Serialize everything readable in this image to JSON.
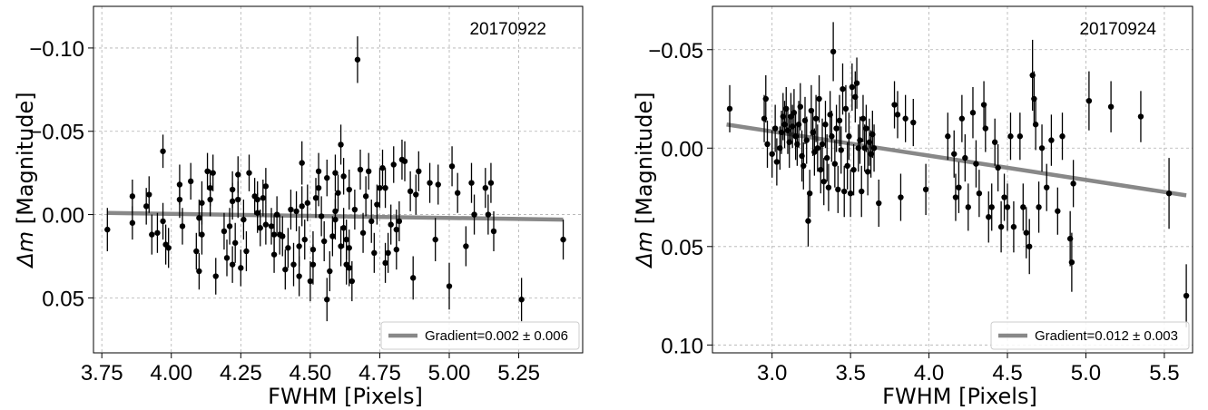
{
  "chart_data": [
    {
      "type": "scatter",
      "annotation": "20170922",
      "xlabel": "FWHM [Pixels]",
      "ylabel_symbol": "Δm",
      "ylabel_text": "[Magnitude]",
      "xlim": [
        3.72,
        5.48
      ],
      "ylim": [
        0.083,
        -0.125
      ],
      "y_inverted": true,
      "grid": true,
      "xticks": [
        3.75,
        4.0,
        4.25,
        4.5,
        4.75,
        5.0,
        5.25
      ],
      "xtick_labels": [
        "3.75",
        "4.00",
        "4.25",
        "4.50",
        "4.75",
        "5.00",
        "5.25"
      ],
      "yticks": [
        -0.1,
        -0.05,
        0.0,
        0.05
      ],
      "ytick_labels": [
        "−0.10",
        "−0.05",
        "0.00",
        "0.05"
      ],
      "fit": {
        "x": [
          3.77,
          5.41
        ],
        "y": [
          -0.001,
          0.003
        ],
        "color": "#888888"
      },
      "legend": {
        "label": "Gradient=0.002 ± 0.006",
        "position": "lower right"
      },
      "points": [
        [
          3.77,
          0.009,
          0.013
        ],
        [
          3.86,
          -0.011,
          0.01
        ],
        [
          3.86,
          0.005,
          0.01
        ],
        [
          3.91,
          -0.005,
          0.011
        ],
        [
          3.92,
          -0.012,
          0.011
        ],
        [
          3.93,
          0.012,
          0.012
        ],
        [
          3.95,
          0.011,
          0.012
        ],
        [
          3.97,
          -0.038,
          0.01
        ],
        [
          3.97,
          0.004,
          0.011
        ],
        [
          3.98,
          0.018,
          0.012
        ],
        [
          3.99,
          0.02,
          0.012
        ],
        [
          4.03,
          -0.009,
          0.011
        ],
        [
          4.04,
          0.007,
          0.011
        ],
        [
          4.03,
          -0.018,
          0.012
        ],
        [
          4.07,
          -0.02,
          0.011
        ],
        [
          4.09,
          0.022,
          0.011
        ],
        [
          4.1,
          0.034,
          0.011
        ],
        [
          4.1,
          0.002,
          0.011
        ],
        [
          4.11,
          0.012,
          0.012
        ],
        [
          4.11,
          -0.007,
          0.013
        ],
        [
          4.13,
          -0.026,
          0.011
        ],
        [
          4.14,
          -0.016,
          0.011
        ],
        [
          4.14,
          -0.009,
          0.01
        ],
        [
          4.15,
          -0.025,
          0.011
        ],
        [
          4.16,
          0.037,
          0.011
        ],
        [
          4.19,
          0.01,
          0.011
        ],
        [
          4.2,
          0.026,
          0.011
        ],
        [
          4.21,
          0.007,
          0.011
        ],
        [
          4.22,
          -0.015,
          0.011
        ],
        [
          4.22,
          -0.008,
          0.011
        ],
        [
          4.22,
          0.03,
          0.011
        ],
        [
          4.23,
          0.017,
          0.012
        ],
        [
          4.24,
          -0.024,
          0.011
        ],
        [
          4.24,
          -0.009,
          0.011
        ],
        [
          4.25,
          0.032,
          0.011
        ],
        [
          4.26,
          0.003,
          0.012
        ],
        [
          4.27,
          0.022,
          0.012
        ],
        [
          4.28,
          -0.025,
          0.011
        ],
        [
          4.3,
          -0.011,
          0.011
        ],
        [
          4.31,
          -0.009,
          0.011
        ],
        [
          4.31,
          -0.001,
          0.012
        ],
        [
          4.32,
          0.008,
          0.011
        ],
        [
          4.33,
          -0.01,
          0.011
        ],
        [
          4.34,
          -0.017,
          0.011
        ],
        [
          4.34,
          0.006,
          0.012
        ],
        [
          4.36,
          0.007,
          0.011
        ],
        [
          4.37,
          0.012,
          0.012
        ],
        [
          4.37,
          0.024,
          0.011
        ],
        [
          4.38,
          0.0,
          0.011
        ],
        [
          4.39,
          0.012,
          0.012
        ],
        [
          4.4,
          0.013,
          0.012
        ],
        [
          4.41,
          0.033,
          0.012
        ],
        [
          4.42,
          0.02,
          0.012
        ],
        [
          4.43,
          -0.003,
          0.012
        ],
        [
          4.44,
          0.03,
          0.013
        ],
        [
          4.45,
          -0.002,
          0.012
        ],
        [
          4.46,
          0.019,
          0.012
        ],
        [
          4.46,
          0.037,
          0.012
        ],
        [
          4.47,
          -0.005,
          0.012
        ],
        [
          4.48,
          0.015,
          0.012
        ],
        [
          4.49,
          -0.007,
          0.011
        ],
        [
          4.5,
          0.04,
          0.012
        ],
        [
          4.51,
          0.021,
          0.011
        ],
        [
          4.51,
          0.03,
          0.012
        ],
        [
          4.52,
          -0.01,
          0.012
        ],
        [
          4.53,
          -0.016,
          0.011
        ],
        [
          4.53,
          -0.026,
          0.011
        ],
        [
          4.54,
          0.001,
          0.012
        ],
        [
          4.55,
          0.016,
          0.012
        ],
        [
          4.56,
          -0.022,
          0.011
        ],
        [
          4.56,
          0.051,
          0.013
        ],
        [
          4.57,
          0.034,
          0.012
        ],
        [
          4.59,
          0.003,
          0.012
        ],
        [
          4.59,
          -0.002,
          0.011
        ],
        [
          4.6,
          -0.013,
          0.011
        ],
        [
          4.61,
          0.019,
          0.012
        ],
        [
          4.61,
          -0.042,
          0.012
        ],
        [
          4.62,
          -0.023,
          0.011
        ],
        [
          4.62,
          0.008,
          0.012
        ],
        [
          4.63,
          0.03,
          0.012
        ],
        [
          4.63,
          0.015,
          0.012
        ],
        [
          4.64,
          0.032,
          0.011
        ],
        [
          4.64,
          0.02,
          0.011
        ],
        [
          4.64,
          -0.015,
          0.012
        ],
        [
          4.65,
          0.04,
          0.012
        ],
        [
          4.66,
          -0.003,
          0.012
        ],
        [
          4.67,
          -0.093,
          0.014
        ],
        [
          4.68,
          -0.027,
          0.012
        ],
        [
          4.69,
          0.011,
          0.012
        ],
        [
          4.7,
          -0.011,
          0.012
        ],
        [
          4.71,
          -0.026,
          0.011
        ],
        [
          4.72,
          0.004,
          0.013
        ],
        [
          4.73,
          0.023,
          0.012
        ],
        [
          4.74,
          -0.006,
          0.012
        ],
        [
          4.75,
          -0.016,
          0.012
        ],
        [
          4.76,
          -0.028,
          0.011
        ],
        [
          4.77,
          0.029,
          0.012
        ],
        [
          4.77,
          -0.016,
          0.012
        ],
        [
          4.78,
          0.023,
          0.012
        ],
        [
          4.79,
          0.006,
          0.012
        ],
        [
          4.8,
          -0.03,
          0.011
        ],
        [
          4.81,
          0.009,
          0.012
        ],
        [
          4.81,
          0.021,
          0.012
        ],
        [
          4.82,
          0.004,
          0.012
        ],
        [
          4.83,
          -0.033,
          0.012
        ],
        [
          4.84,
          -0.032,
          0.012
        ],
        [
          4.86,
          -0.014,
          0.012
        ],
        [
          4.87,
          0.038,
          0.013
        ],
        [
          4.88,
          -0.012,
          0.012
        ],
        [
          4.89,
          -0.026,
          0.012
        ],
        [
          4.93,
          -0.019,
          0.012
        ],
        [
          4.95,
          0.015,
          0.013
        ],
        [
          4.96,
          -0.018,
          0.012
        ],
        [
          5.0,
          0.043,
          0.014
        ],
        [
          5.01,
          -0.029,
          0.012
        ],
        [
          5.03,
          -0.013,
          0.012
        ],
        [
          5.06,
          0.019,
          0.012
        ],
        [
          5.08,
          -0.019,
          0.012
        ],
        [
          5.09,
          0.0,
          0.012
        ],
        [
          5.13,
          -0.016,
          0.012
        ],
        [
          5.14,
          0.0,
          0.012
        ],
        [
          5.15,
          -0.019,
          0.012
        ],
        [
          5.16,
          0.01,
          0.012
        ],
        [
          5.26,
          0.051,
          0.013
        ],
        [
          5.41,
          0.015,
          0.012
        ],
        [
          4.58,
          0.013,
          0.012
        ],
        [
          4.47,
          -0.031,
          0.013
        ],
        [
          4.59,
          -0.025,
          0.011
        ]
      ]
    },
    {
      "type": "scatter",
      "annotation": "20170924",
      "xlabel": "FWHM [Pixels]",
      "ylabel_symbol": "Δm",
      "ylabel_text": "[Magnitude]",
      "xlim": [
        2.62,
        5.68
      ],
      "ylim": [
        0.104,
        -0.072
      ],
      "y_inverted": true,
      "grid": true,
      "xticks": [
        3.0,
        3.5,
        4.0,
        4.5,
        5.0,
        5.5
      ],
      "xtick_labels": [
        "3.0",
        "3.5",
        "4.0",
        "4.5",
        "5.0",
        "5.5"
      ],
      "yticks": [
        -0.05,
        0.0,
        0.05,
        0.1
      ],
      "ytick_labels": [
        "−0.05",
        "0.00",
        "0.05",
        "0.10"
      ],
      "fit": {
        "x": [
          2.71,
          5.64
        ],
        "y": [
          -0.012,
          0.024
        ],
        "color": "#888888"
      },
      "legend": {
        "label": "Gradient=0.012 ± 0.003",
        "position": "lower right"
      },
      "points": [
        [
          2.73,
          -0.02,
          0.012
        ],
        [
          2.95,
          -0.015,
          0.012
        ],
        [
          2.96,
          -0.025,
          0.012
        ],
        [
          2.97,
          -0.002,
          0.012
        ],
        [
          3.0,
          0.003,
          0.012
        ],
        [
          3.02,
          -0.01,
          0.012
        ],
        [
          3.03,
          0.007,
          0.012
        ],
        [
          3.05,
          0.0,
          0.011
        ],
        [
          3.06,
          -0.008,
          0.011
        ],
        [
          3.07,
          -0.016,
          0.012
        ],
        [
          3.08,
          -0.012,
          0.012
        ],
        [
          3.09,
          -0.02,
          0.011
        ],
        [
          3.1,
          -0.009,
          0.012
        ],
        [
          3.11,
          -0.003,
          0.013
        ],
        [
          3.12,
          -0.016,
          0.012
        ],
        [
          3.13,
          -0.011,
          0.011
        ],
        [
          3.14,
          -0.018,
          0.012
        ],
        [
          3.15,
          -0.006,
          0.012
        ],
        [
          3.16,
          -0.002,
          0.011
        ],
        [
          3.17,
          -0.012,
          0.012
        ],
        [
          3.18,
          -0.021,
          0.012
        ],
        [
          3.19,
          0.004,
          0.013
        ],
        [
          3.2,
          0.009,
          0.012
        ],
        [
          3.21,
          -0.014,
          0.012
        ],
        [
          3.22,
          -0.004,
          0.012
        ],
        [
          3.23,
          0.037,
          0.013
        ],
        [
          3.24,
          0.023,
          0.012
        ],
        [
          3.25,
          -0.019,
          0.013
        ],
        [
          3.26,
          -0.008,
          0.012
        ],
        [
          3.27,
          0.002,
          0.012
        ],
        [
          3.28,
          -0.015,
          0.012
        ],
        [
          3.29,
          0.0,
          0.012
        ],
        [
          3.3,
          -0.025,
          0.012
        ],
        [
          3.31,
          0.011,
          0.012
        ],
        [
          3.32,
          -0.002,
          0.013
        ],
        [
          3.33,
          0.017,
          0.012
        ],
        [
          3.34,
          -0.012,
          0.012
        ],
        [
          3.35,
          0.005,
          0.012
        ],
        [
          3.36,
          0.02,
          0.012
        ],
        [
          3.37,
          -0.017,
          0.012
        ],
        [
          3.38,
          -0.006,
          0.013
        ],
        [
          3.39,
          -0.049,
          0.015
        ],
        [
          3.4,
          0.008,
          0.012
        ],
        [
          3.41,
          -0.01,
          0.012
        ],
        [
          3.42,
          0.021,
          0.012
        ],
        [
          3.43,
          -0.014,
          0.013
        ],
        [
          3.44,
          0.001,
          0.012
        ],
        [
          3.45,
          -0.03,
          0.013
        ],
        [
          3.46,
          0.022,
          0.013
        ],
        [
          3.47,
          -0.02,
          0.012
        ],
        [
          3.48,
          0.009,
          0.012
        ],
        [
          3.49,
          -0.006,
          0.012
        ],
        [
          3.5,
          0.023,
          0.012
        ],
        [
          3.51,
          -0.031,
          0.012
        ],
        [
          3.52,
          0.011,
          0.013
        ],
        [
          3.53,
          -0.026,
          0.013
        ],
        [
          3.54,
          -0.033,
          0.013
        ],
        [
          3.55,
          0.0,
          0.012
        ],
        [
          3.56,
          -0.004,
          0.012
        ],
        [
          3.57,
          0.022,
          0.013
        ],
        [
          3.58,
          -0.015,
          0.012
        ],
        [
          3.59,
          0.0,
          0.012
        ],
        [
          3.6,
          -0.01,
          0.012
        ],
        [
          3.61,
          0.012,
          0.012
        ],
        [
          3.62,
          -0.003,
          0.012
        ],
        [
          3.63,
          0.003,
          0.012
        ],
        [
          3.64,
          -0.007,
          0.012
        ],
        [
          3.65,
          0.0,
          0.012
        ],
        [
          3.68,
          0.028,
          0.012
        ],
        [
          3.78,
          -0.022,
          0.012
        ],
        [
          3.8,
          -0.017,
          0.012
        ],
        [
          3.82,
          0.025,
          0.012
        ],
        [
          3.85,
          -0.015,
          0.012
        ],
        [
          3.9,
          -0.013,
          0.012
        ],
        [
          3.98,
          0.021,
          0.013
        ],
        [
          4.12,
          -0.006,
          0.012
        ],
        [
          4.16,
          0.003,
          0.012
        ],
        [
          4.17,
          0.025,
          0.012
        ],
        [
          4.19,
          0.02,
          0.013
        ],
        [
          4.21,
          -0.015,
          0.012
        ],
        [
          4.23,
          0.005,
          0.012
        ],
        [
          4.25,
          0.03,
          0.012
        ],
        [
          4.28,
          -0.018,
          0.013
        ],
        [
          4.3,
          0.008,
          0.012
        ],
        [
          4.32,
          0.023,
          0.012
        ],
        [
          4.35,
          -0.022,
          0.012
        ],
        [
          4.36,
          -0.01,
          0.012
        ],
        [
          4.38,
          0.035,
          0.013
        ],
        [
          4.4,
          0.03,
          0.012
        ],
        [
          4.42,
          -0.003,
          0.012
        ],
        [
          4.44,
          0.01,
          0.012
        ],
        [
          4.46,
          0.04,
          0.013
        ],
        [
          4.48,
          0.025,
          0.012
        ],
        [
          4.5,
          0.03,
          0.012
        ],
        [
          4.52,
          -0.006,
          0.012
        ],
        [
          4.54,
          0.04,
          0.013
        ],
        [
          4.58,
          -0.006,
          0.012
        ],
        [
          4.6,
          0.03,
          0.012
        ],
        [
          4.62,
          0.043,
          0.013
        ],
        [
          4.64,
          0.05,
          0.014
        ],
        [
          4.66,
          -0.037,
          0.018
        ],
        [
          4.67,
          -0.025,
          0.014
        ],
        [
          4.68,
          -0.012,
          0.013
        ],
        [
          4.7,
          0.03,
          0.013
        ],
        [
          4.72,
          0.0,
          0.012
        ],
        [
          4.75,
          0.02,
          0.012
        ],
        [
          4.78,
          -0.004,
          0.013
        ],
        [
          4.82,
          0.032,
          0.012
        ],
        [
          4.85,
          -0.006,
          0.012
        ],
        [
          4.9,
          0.046,
          0.014
        ],
        [
          4.91,
          0.058,
          0.015
        ],
        [
          4.92,
          0.018,
          0.012
        ],
        [
          5.02,
          -0.024,
          0.015
        ],
        [
          5.16,
          -0.021,
          0.013
        ],
        [
          5.35,
          -0.016,
          0.013
        ],
        [
          5.53,
          0.023,
          0.018
        ],
        [
          5.64,
          0.075,
          0.016
        ]
      ]
    }
  ]
}
